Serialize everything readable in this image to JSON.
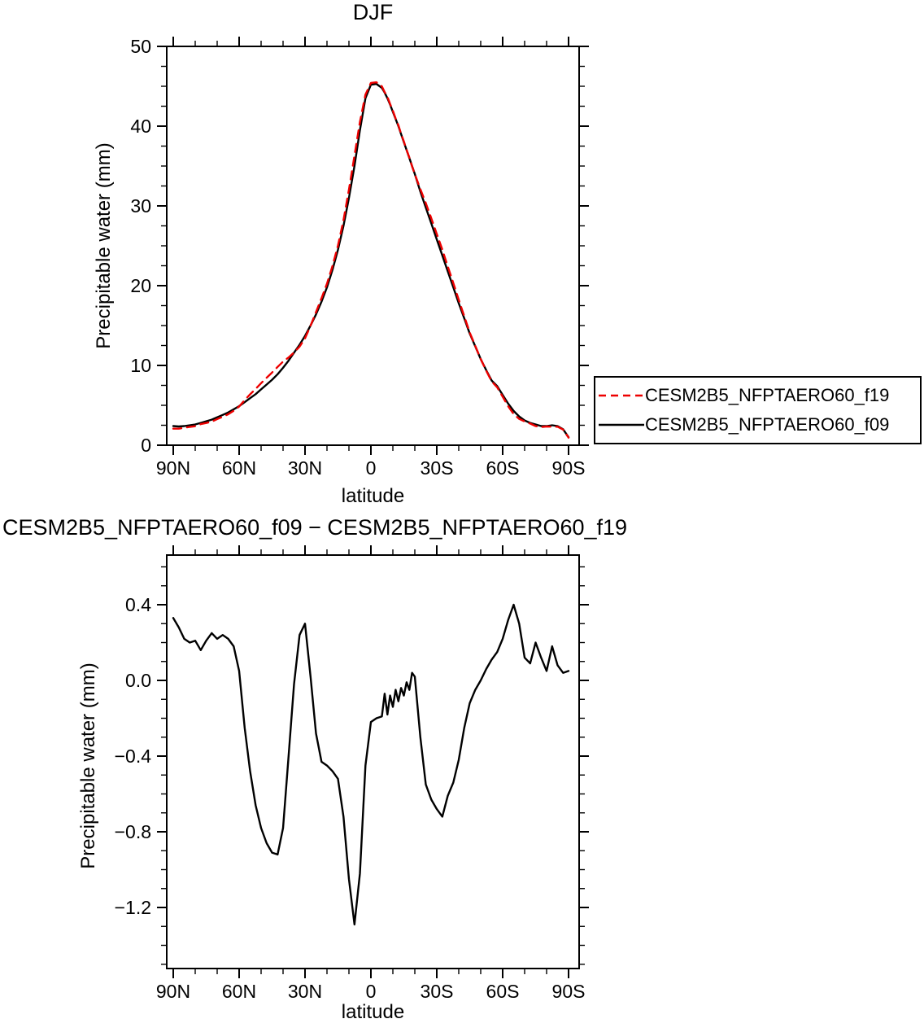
{
  "figure": {
    "background": "#ffffff",
    "text_color": "#000000"
  },
  "chart_data": [
    {
      "type": "line",
      "title": "DJF",
      "xlabel": "latitude",
      "ylabel": "Precipitable water (mm)",
      "xlim": [
        90,
        -90
      ],
      "ylim": [
        0,
        50
      ],
      "grid": false,
      "legend_position": "outside lower right",
      "xticks": [
        90,
        60,
        30,
        0,
        -30,
        -60,
        -90
      ],
      "xtick_labels": [
        "90N",
        "60N",
        "30N",
        "0",
        "30S",
        "60S",
        "90S"
      ],
      "yticks": [
        0,
        10,
        20,
        30,
        40,
        50
      ],
      "ytick_labels": [
        "0",
        "10",
        "20",
        "30",
        "40",
        "50"
      ],
      "x": [
        90,
        87.5,
        85,
        82.5,
        80,
        77.5,
        75,
        72.5,
        70,
        67.5,
        65,
        62.5,
        60,
        57.5,
        55,
        52.5,
        50,
        47.5,
        45,
        42.5,
        40,
        37.5,
        35,
        32.5,
        30,
        27.5,
        25,
        22.5,
        20,
        17.5,
        15,
        12.5,
        10,
        7.5,
        5,
        2.5,
        0,
        -2.5,
        -5,
        -6.25,
        -7.5,
        -8.75,
        -10,
        -11.25,
        -12.5,
        -13.75,
        -15,
        -16.25,
        -17.5,
        -18.75,
        -20,
        -22.5,
        -25,
        -27.5,
        -30,
        -32.5,
        -35,
        -37.5,
        -40,
        -42.5,
        -45,
        -47.5,
        -50,
        -52.5,
        -55,
        -57.5,
        -60,
        -62.5,
        -65,
        -67.5,
        -70,
        -72.5,
        -75,
        -77.5,
        -80,
        -82.5,
        -85,
        -87.5,
        -90
      ],
      "series": [
        {
          "name": "CESM2B5_NFPTAERO60_f19",
          "color": "#ee0000",
          "line_style": "dashed",
          "values": [
            2.07,
            2.07,
            2.18,
            2.3,
            2.39,
            2.64,
            2.79,
            2.95,
            3.28,
            3.56,
            3.88,
            4.32,
            4.85,
            5.65,
            6.38,
            7.06,
            7.78,
            8.46,
            9.11,
            9.82,
            10.48,
            11.0,
            11.62,
            12.36,
            13.4,
            14.98,
            16.68,
            18.43,
            20.25,
            22.48,
            25.02,
            28.22,
            32.05,
            36.29,
            40.52,
            43.95,
            45.42,
            45.5,
            44.99,
            44.27,
            43.68,
            42.78,
            41.94,
            40.95,
            40.11,
            39.04,
            38.08,
            37.01,
            36.05,
            34.96,
            33.98,
            32.1,
            30.35,
            28.43,
            26.48,
            24.52,
            22.41,
            20.34,
            18.22,
            16.15,
            14.12,
            12.45,
            10.8,
            9.34,
            7.99,
            7.25,
            6.08,
            4.88,
            3.9,
            3.3,
            2.98,
            2.71,
            2.4,
            2.28,
            2.35,
            2.32,
            2.32,
            1.96,
            0.95
          ]
        },
        {
          "name": "CESM2B5_NFPTAERO60_f09",
          "color": "#000000",
          "line_style": "solid",
          "values": [
            2.4,
            2.35,
            2.4,
            2.5,
            2.6,
            2.8,
            3.0,
            3.2,
            3.5,
            3.8,
            4.1,
            4.5,
            4.9,
            5.4,
            5.9,
            6.4,
            7.0,
            7.6,
            8.2,
            8.9,
            9.7,
            10.6,
            11.6,
            12.6,
            13.7,
            15.0,
            16.4,
            18.0,
            19.8,
            22.0,
            24.5,
            27.5,
            31.0,
            35.0,
            39.5,
            43.5,
            45.2,
            45.3,
            44.8,
            44.2,
            43.5,
            42.7,
            41.8,
            40.9,
            40.0,
            39.0,
            38.0,
            37.0,
            36.0,
            35.0,
            34.0,
            31.8,
            29.8,
            27.8,
            25.8,
            23.8,
            21.8,
            19.8,
            17.8,
            15.9,
            14.0,
            12.4,
            10.8,
            9.4,
            8.1,
            7.4,
            6.3,
            5.2,
            4.3,
            3.6,
            3.1,
            2.8,
            2.6,
            2.4,
            2.4,
            2.5,
            2.4,
            2.0,
            1.0
          ]
        }
      ]
    },
    {
      "type": "line",
      "title": "CESM2B5_NFPTAERO60_f09 − CESM2B5_NFPTAERO60_f19",
      "xlabel": "latitude",
      "ylabel": "Precipitable water (mm)",
      "xlim": [
        90,
        -90
      ],
      "ylim": [
        -1.52,
        0.66
      ],
      "grid": false,
      "xticks": [
        90,
        60,
        30,
        0,
        -30,
        -60,
        -90
      ],
      "xtick_labels": [
        "90N",
        "60N",
        "30N",
        "0",
        "30S",
        "60S",
        "90S"
      ],
      "yticks": [
        0.4,
        0.0,
        -0.4,
        -0.8,
        -1.2
      ],
      "ytick_labels": [
        "0.4",
        "0.0",
        "−0.4",
        "−0.8",
        "−1.2"
      ],
      "x": [
        90,
        87.5,
        85,
        82.5,
        80,
        77.5,
        75,
        72.5,
        70,
        67.5,
        65,
        62.5,
        60,
        57.5,
        55,
        52.5,
        50,
        47.5,
        45,
        42.5,
        40,
        37.5,
        35,
        32.5,
        30,
        27.5,
        25,
        22.5,
        20,
        17.5,
        15,
        12.5,
        10,
        7.5,
        5,
        2.5,
        0,
        -2.5,
        -5,
        -6.25,
        -7.5,
        -8.75,
        -10,
        -11.25,
        -12.5,
        -13.75,
        -15,
        -16.25,
        -17.5,
        -18.75,
        -20,
        -22.5,
        -25,
        -27.5,
        -30,
        -32.5,
        -35,
        -37.5,
        -40,
        -42.5,
        -45,
        -47.5,
        -50,
        -52.5,
        -55,
        -57.5,
        -60,
        -62.5,
        -65,
        -67.5,
        -70,
        -72.5,
        -75,
        -77.5,
        -80,
        -82.5,
        -85,
        -87.5,
        -90
      ],
      "series": [
        {
          "name": "CESM2B5_NFPTAERO60_f09 − CESM2B5_NFPTAERO60_f19",
          "color": "#000000",
          "line_style": "solid",
          "values": [
            0.33,
            0.28,
            0.22,
            0.2,
            0.21,
            0.16,
            0.21,
            0.25,
            0.22,
            0.24,
            0.22,
            0.18,
            0.05,
            -0.25,
            -0.48,
            -0.66,
            -0.78,
            -0.86,
            -0.91,
            -0.92,
            -0.78,
            -0.4,
            -0.02,
            0.24,
            0.3,
            0.02,
            -0.28,
            -0.43,
            -0.45,
            -0.48,
            -0.52,
            -0.72,
            -1.05,
            -1.29,
            -1.02,
            -0.45,
            -0.22,
            -0.2,
            -0.19,
            -0.07,
            -0.18,
            -0.08,
            -0.14,
            -0.05,
            -0.11,
            -0.04,
            -0.08,
            -0.01,
            -0.05,
            0.04,
            0.02,
            -0.3,
            -0.55,
            -0.63,
            -0.68,
            -0.72,
            -0.61,
            -0.54,
            -0.42,
            -0.25,
            -0.12,
            -0.05,
            0.0,
            0.06,
            0.11,
            0.15,
            0.22,
            0.32,
            0.4,
            0.3,
            0.12,
            0.09,
            0.2,
            0.12,
            0.05,
            0.18,
            0.08,
            0.04,
            0.05
          ]
        }
      ]
    }
  ]
}
